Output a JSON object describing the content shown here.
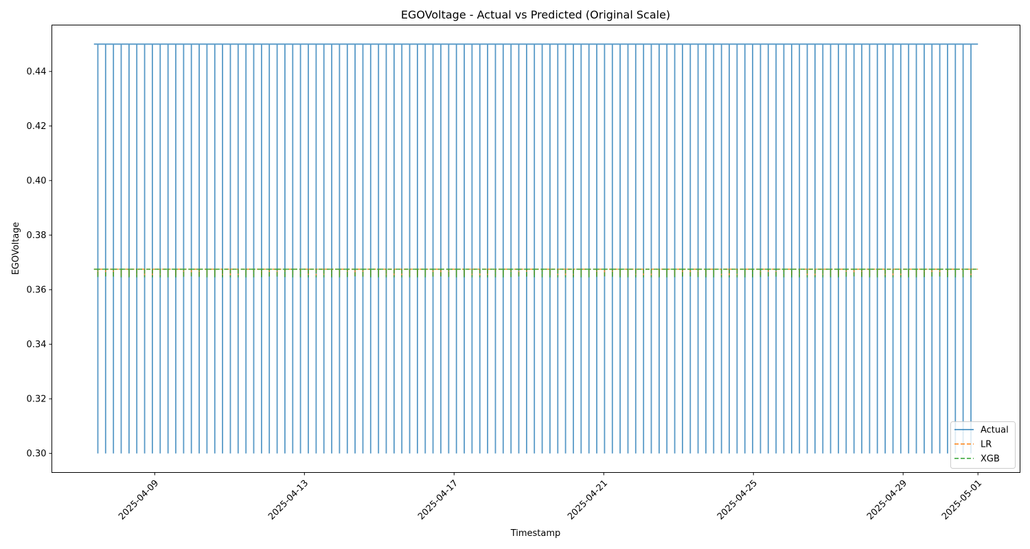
{
  "chart_data": {
    "type": "line",
    "title": "EGOVoltage - Actual vs Predicted (Original Scale)",
    "xlabel": "Timestamp",
    "ylabel": "EGOVoltage",
    "x_range": [
      "2025-04-07T09:00",
      "2025-05-01T00:00"
    ],
    "xlim": [
      "2025-04-06T06:00",
      "2025-05-02T03:00"
    ],
    "ylim": [
      0.293,
      0.457
    ],
    "x_ticks": [
      "2025-04-09",
      "2025-04-13",
      "2025-04-17",
      "2025-04-21",
      "2025-04-25",
      "2025-04-29",
      "2025-05-01"
    ],
    "y_ticks": [
      "0.30",
      "0.32",
      "0.34",
      "0.36",
      "0.38",
      "0.40",
      "0.42",
      "0.44"
    ],
    "grid": false,
    "legend_position": "lower right",
    "cycle_hours": 2.5,
    "series": [
      {
        "name": "Actual",
        "color": "#1f77b4",
        "style": "solid",
        "pattern": "alternating square wave between high and low",
        "high": 0.45,
        "low": 0.3
      },
      {
        "name": "LR",
        "color": "#ff7f0e",
        "style": "dashed",
        "pattern": "nearly constant with small alternating dips",
        "high": 0.3675,
        "low": 0.365
      },
      {
        "name": "XGB",
        "color": "#2ca02c",
        "style": "dashed",
        "pattern": "nearly constant with small alternating dips",
        "high": 0.3675,
        "low": 0.3645
      }
    ]
  }
}
